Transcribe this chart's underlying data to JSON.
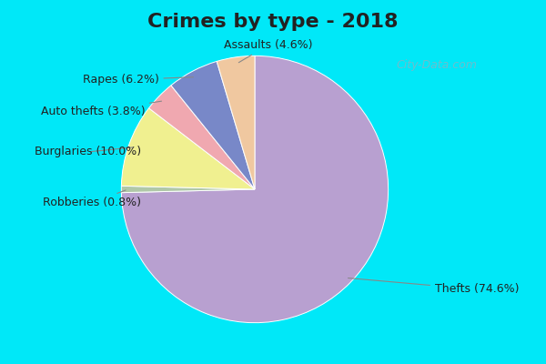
{
  "title": "Crimes by type - 2018",
  "title_fontsize": 16,
  "title_fontweight": "bold",
  "slices": [
    {
      "label": "Thefts",
      "value": 74.6,
      "color": "#b8a0d0"
    },
    {
      "label": "Robberies",
      "value": 0.8,
      "color": "#b0c8a8"
    },
    {
      "label": "Burglaries",
      "value": 10.0,
      "color": "#f0f090"
    },
    {
      "label": "Auto thefts",
      "value": 3.8,
      "color": "#f0a8b0"
    },
    {
      "label": "Rapes",
      "value": 6.2,
      "color": "#7888c8"
    },
    {
      "label": "Assaults",
      "value": 4.6,
      "color": "#f0c8a0"
    }
  ],
  "border_color": "#00e8f8",
  "border_thickness": 0.07,
  "bg_color": "#e8f4ec",
  "watermark": "City-Data.com",
  "startangle": 90,
  "label_fontsize": 9,
  "title_color": "#222222"
}
